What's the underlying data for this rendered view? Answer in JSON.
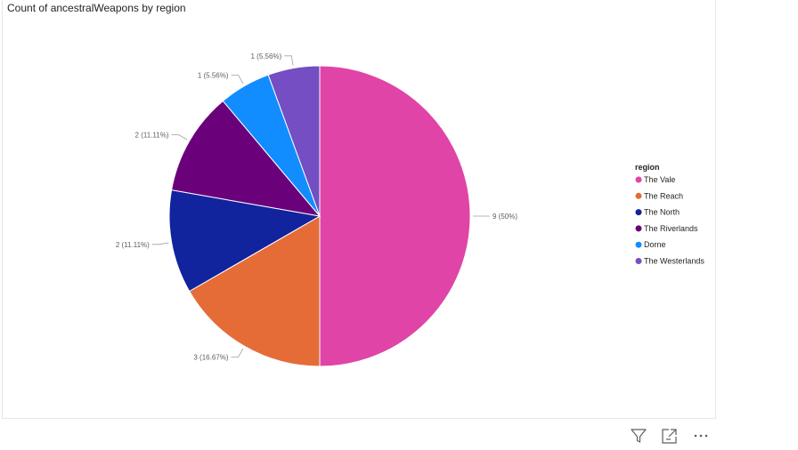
{
  "chart_data": {
    "type": "pie",
    "title": "Count of ancestralWeapons by region",
    "legend_title": "region",
    "legend_position": "right",
    "slices": [
      {
        "name": "The Vale",
        "value": 9,
        "label": "9 (50%)",
        "color": "#E044A7"
      },
      {
        "name": "The Reach",
        "value": 3,
        "label": "3 (16.67%)",
        "color": "#E66C37"
      },
      {
        "name": "The North",
        "value": 2,
        "label": "2 (11.11%)",
        "color": "#12239E"
      },
      {
        "name": "The Riverlands",
        "value": 2,
        "label": "2 (11.11%)",
        "color": "#6B007B"
      },
      {
        "name": "Dorne",
        "value": 1,
        "label": "1 (5.56%)",
        "color": "#118DFF"
      },
      {
        "name": "The Westerlands",
        "value": 1,
        "label": "1 (5.56%)",
        "color": "#744EC2"
      }
    ]
  },
  "toolbar": {
    "icons": [
      "filter-icon",
      "focus-mode-icon",
      "more-options-icon"
    ]
  }
}
